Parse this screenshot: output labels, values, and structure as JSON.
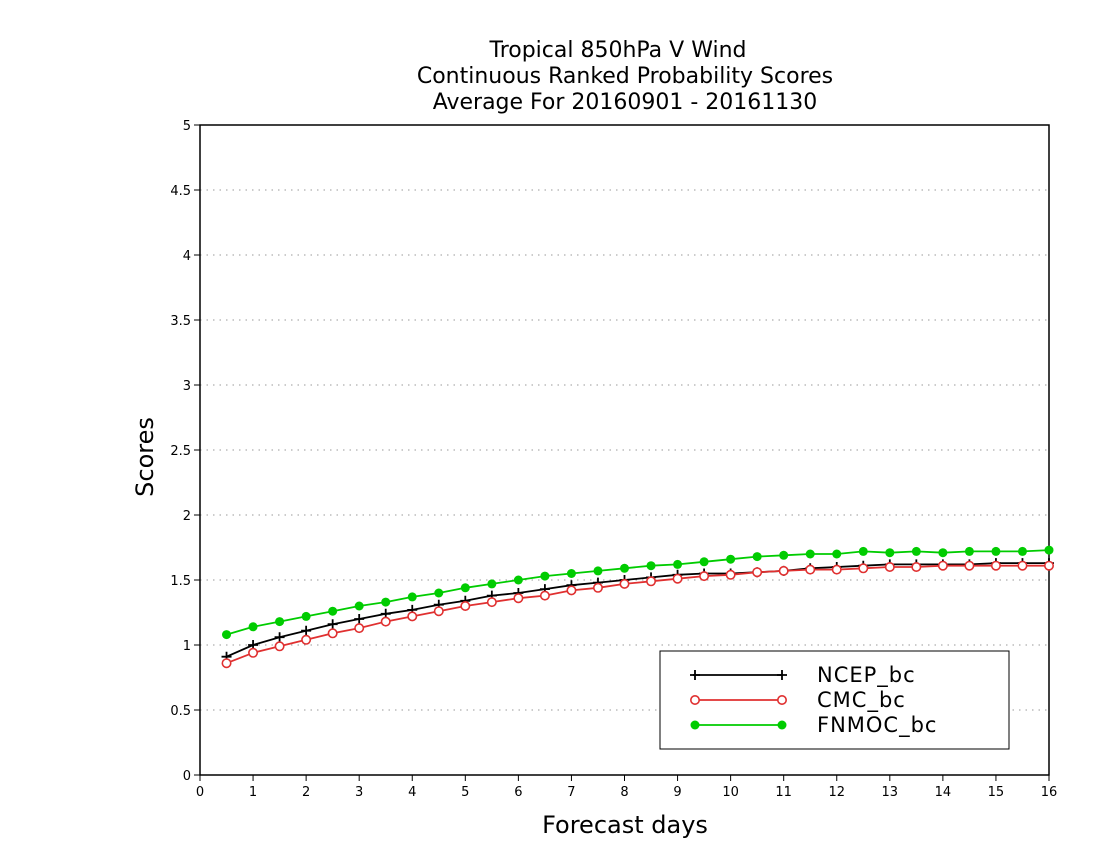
{
  "chart_data": {
    "type": "line",
    "title_lines": [
      "Tropical 850hPa V Wind",
      "Continuous Ranked Probability Scores",
      "Average For 20160901 - 20161130"
    ],
    "xlabel": "Forecast days",
    "ylabel": "Scores",
    "xlim": [
      0,
      16
    ],
    "ylim": [
      0,
      5
    ],
    "xticks": [
      "0",
      "1",
      "2",
      "3",
      "4",
      "5",
      "6",
      "7",
      "8",
      "9",
      "10",
      "11",
      "12",
      "13",
      "14",
      "15",
      "16"
    ],
    "yticks": [
      "0",
      "0.5",
      "1",
      "1.5",
      "2",
      "2.5",
      "3",
      "3.5",
      "4",
      "4.5",
      "5"
    ],
    "grid": "horizontal dotted",
    "legend_position": "bottom-right",
    "x": [
      0.5,
      1,
      1.5,
      2,
      2.5,
      3,
      3.5,
      4,
      4.5,
      5,
      5.5,
      6,
      6.5,
      7,
      7.5,
      8,
      8.5,
      9,
      9.5,
      10,
      10.5,
      11,
      11.5,
      12,
      12.5,
      13,
      13.5,
      14,
      14.5,
      15,
      15.5,
      16
    ],
    "series": [
      {
        "name": "NCEP_bc",
        "color": "#000000",
        "marker": "plus",
        "values": [
          0.91,
          1.0,
          1.06,
          1.11,
          1.16,
          1.2,
          1.24,
          1.27,
          1.31,
          1.34,
          1.38,
          1.4,
          1.43,
          1.46,
          1.48,
          1.5,
          1.52,
          1.54,
          1.55,
          1.55,
          1.56,
          1.57,
          1.59,
          1.6,
          1.61,
          1.62,
          1.62,
          1.62,
          1.62,
          1.63,
          1.63,
          1.63
        ]
      },
      {
        "name": "CMC_bc",
        "color": "#e03030",
        "marker": "open-circle",
        "values": [
          0.86,
          0.94,
          0.99,
          1.04,
          1.09,
          1.13,
          1.18,
          1.22,
          1.26,
          1.3,
          1.33,
          1.36,
          1.38,
          1.42,
          1.44,
          1.47,
          1.49,
          1.51,
          1.53,
          1.54,
          1.56,
          1.57,
          1.58,
          1.58,
          1.59,
          1.6,
          1.6,
          1.61,
          1.61,
          1.61,
          1.61,
          1.61
        ]
      },
      {
        "name": "FNMOC_bc",
        "color": "#00cc00",
        "marker": "filled-circle",
        "values": [
          1.08,
          1.14,
          1.18,
          1.22,
          1.26,
          1.3,
          1.33,
          1.37,
          1.4,
          1.44,
          1.47,
          1.5,
          1.53,
          1.55,
          1.57,
          1.59,
          1.61,
          1.62,
          1.64,
          1.66,
          1.68,
          1.69,
          1.7,
          1.7,
          1.72,
          1.71,
          1.72,
          1.71,
          1.72,
          1.72,
          1.72,
          1.73
        ]
      }
    ]
  }
}
